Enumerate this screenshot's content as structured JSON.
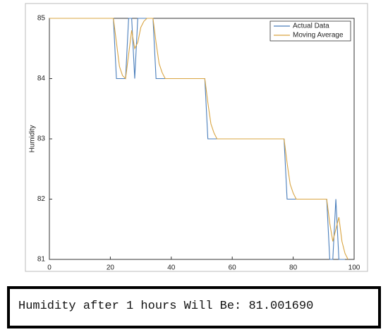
{
  "chart_data": {
    "type": "line",
    "ylabel": "Humidity",
    "xlim": [
      0,
      100
    ],
    "xticks": [
      0,
      20,
      40,
      60,
      80,
      100
    ],
    "ylim": [
      81,
      85
    ],
    "yticks": [
      81,
      82,
      83,
      84,
      85
    ],
    "grid": false,
    "legend": "upper right",
    "series": [
      {
        "name": "Actual Data",
        "color": "#4a7ebb",
        "x": [
          0,
          21,
          22,
          25,
          26,
          27,
          28,
          29,
          34,
          35,
          51,
          52,
          77,
          78,
          91,
          92,
          93,
          94,
          95,
          97
        ],
        "values": [
          85,
          85,
          84,
          84,
          85,
          85,
          84,
          85,
          85,
          84,
          84,
          83,
          83,
          82,
          82,
          81,
          81,
          82,
          81,
          81
        ]
      },
      {
        "name": "Moving Average",
        "color": "#d9a441",
        "x": [
          0,
          21,
          22,
          23,
          24,
          25,
          26,
          27,
          28,
          29,
          30,
          31,
          32,
          34,
          35,
          36,
          37,
          38,
          51,
          52,
          53,
          54,
          55,
          77,
          78,
          79,
          80,
          81,
          91,
          92,
          93,
          94,
          95,
          96,
          97,
          98
        ],
        "values": [
          85,
          85,
          84.6,
          84.2,
          84.05,
          84,
          84.4,
          84.8,
          84.5,
          84.6,
          84.85,
          84.95,
          85,
          85,
          84.6,
          84.25,
          84.1,
          84,
          84,
          83.6,
          83.25,
          83.1,
          83,
          83,
          82.6,
          82.25,
          82.1,
          82,
          82,
          81.6,
          81.3,
          81.5,
          81.7,
          81.3,
          81.1,
          81
        ]
      }
    ]
  },
  "console": {
    "text": "Humidity after 1 hours Will Be: 81.001690"
  }
}
